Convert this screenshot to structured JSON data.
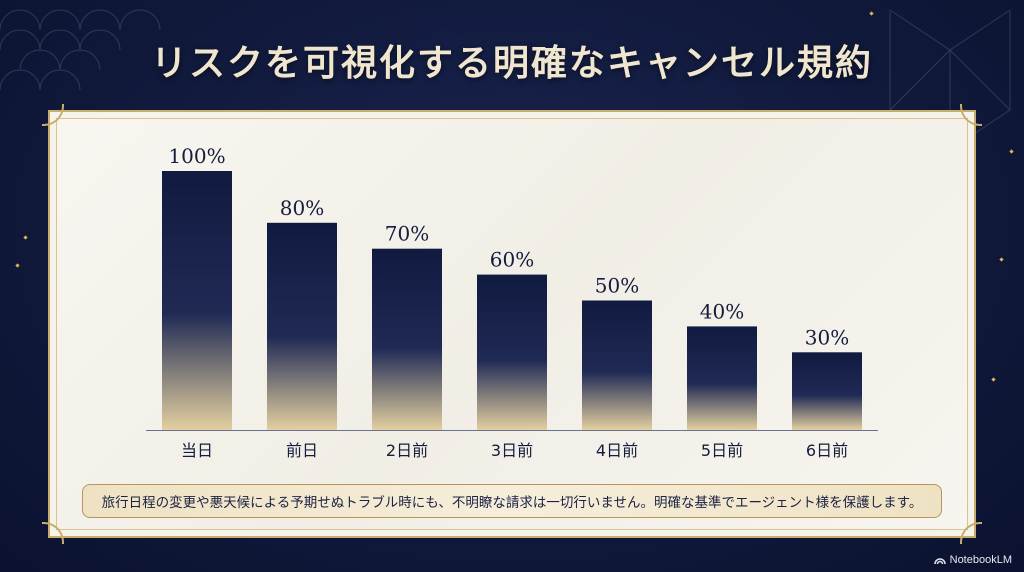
{
  "title": "リスクを可視化する明確なキャンセル規約",
  "note": "旅行日程の変更や悪天候による予期せぬトラブル時にも、不明瞭な請求は一切行いません。明確な基準でエージェント様を保護します。",
  "brand": {
    "label": "NotebookLM",
    "icon": "notebooklm-logo-icon"
  },
  "colors": {
    "bar_top": "#111a3f",
    "bar_bottom": "#e3cfa0",
    "background": "#111a3c",
    "gold": "#c9ad6e"
  },
  "chart_data": {
    "type": "bar",
    "categories": [
      "当日",
      "前日",
      "2日前",
      "3日前",
      "4日前",
      "5日前",
      "6日前"
    ],
    "values": [
      100,
      80,
      70,
      60,
      50,
      40,
      30
    ],
    "value_labels": [
      "100%",
      "80%",
      "70%",
      "60%",
      "50%",
      "40%",
      "30%"
    ],
    "ylim": [
      0,
      100
    ],
    "grid": false,
    "legend": "none"
  }
}
